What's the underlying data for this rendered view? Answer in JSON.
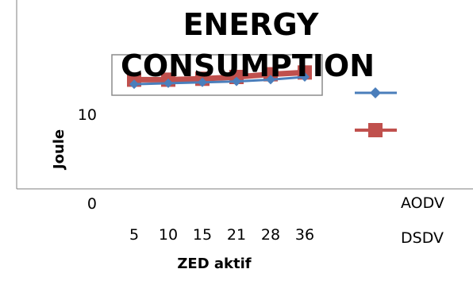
{
  "chart_data": {
    "type": "line",
    "title_lines": [
      "ENERGY",
      "CONSUMPTION"
    ],
    "xlabel": "ZED aktif",
    "ylabel": "Joule",
    "categories": [
      "5",
      "10",
      "15",
      "21",
      "28",
      "36"
    ],
    "y_ticks": [
      "0",
      "10"
    ],
    "ylim": [
      0,
      15
    ],
    "grid": false,
    "legend_placement": "right",
    "series": [
      {
        "name": "AODV",
        "color": "#4A7EBB",
        "marker": "diamond",
        "values": [
          12.7,
          12.8,
          12.9,
          13.0,
          13.2,
          13.5
        ]
      },
      {
        "name": "DSDV",
        "color": "#C0504D",
        "marker": "square",
        "values": [
          13.2,
          13.2,
          13.3,
          13.5,
          13.8,
          14.0
        ]
      }
    ]
  }
}
